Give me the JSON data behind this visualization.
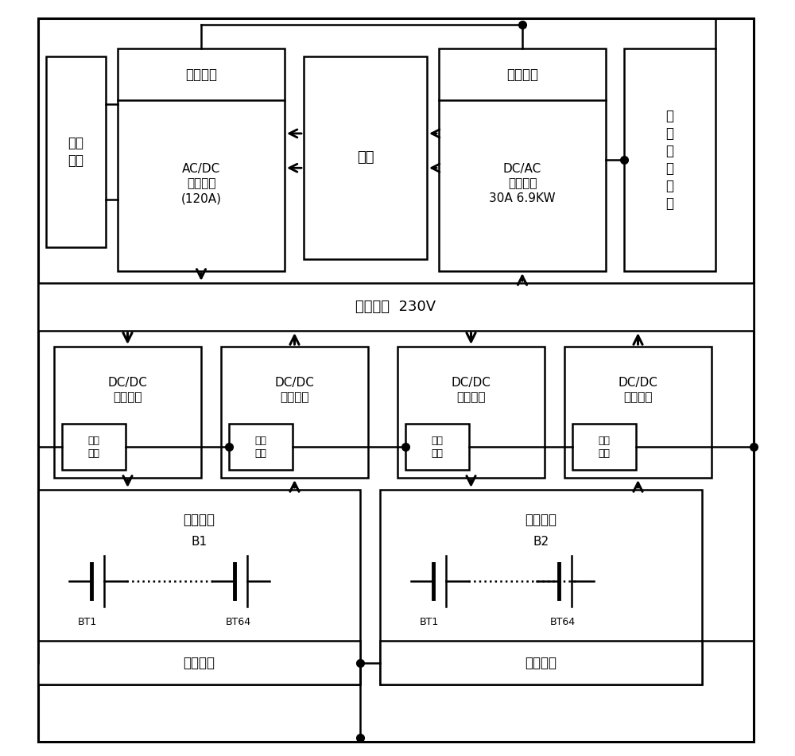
{
  "fig_width": 10.0,
  "fig_height": 9.51,
  "dpi": 100,
  "background": "#ffffff",
  "line_color": "#000000",
  "text_color": "#000000",
  "labels": {
    "dc_load": "直流\n负载",
    "ac_dc_title": "通信接口",
    "ac_dc_body": "AC/DC\n整流电路\n(120A)",
    "grid": "电网",
    "dc_ac_title": "通信接口",
    "dc_ac_body": "DC/AC\n逆变电路\n30A 6.9KW",
    "monitor": "动\n态\n监\n控\n装\n置",
    "dc_bus": "直流母线  230V",
    "dcdc1": "DC/DC\n充电电路",
    "dcdc2": "DC/DC\n放电电路",
    "dcdc3": "DC/DC\n充电电路",
    "dcdc4": "DC/DC\n放电电路",
    "comm_small": "通信\n接口",
    "battery1_title": "蓄电池组",
    "battery1_b": "B1",
    "battery1_bt1": "BT1",
    "battery1_bt64": "BT64",
    "battery2_title": "蓄电池组",
    "battery2_b": "B2",
    "battery2_bt1": "BT1",
    "battery2_bt64": "BT64",
    "comm_bt1": "通信接口",
    "comm_bt2": "通信接口"
  }
}
